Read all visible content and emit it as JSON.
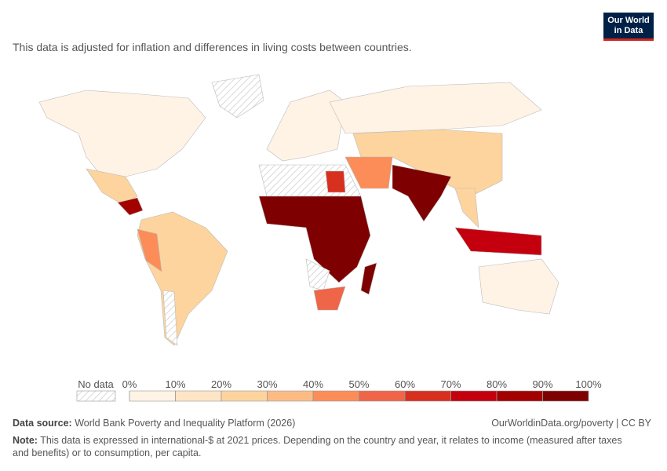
{
  "logo": {
    "line1": "Our World",
    "line2": "in Data"
  },
  "subtitle": "This data is adjusted for inflation and differences in living costs between countries.",
  "legend": {
    "no_data": "No data",
    "ticks": [
      {
        "value": 0,
        "label": "0%"
      },
      {
        "value": 10,
        "label": "10%"
      },
      {
        "value": 20,
        "label": "20%"
      },
      {
        "value": 30,
        "label": "30%"
      },
      {
        "value": 40,
        "label": "40%"
      },
      {
        "value": 50,
        "label": "50%"
      },
      {
        "value": 60,
        "label": "60%"
      },
      {
        "value": 70,
        "label": "70%"
      },
      {
        "value": 80,
        "label": "80%"
      },
      {
        "value": 90,
        "label": "90%"
      },
      {
        "value": 100,
        "label": "100%"
      }
    ],
    "colors": [
      "#fff3e6",
      "#fee5c5",
      "#fdd49e",
      "#fdbb84",
      "#fc8d59",
      "#ef6548",
      "#d7301f",
      "#c4000f",
      "#a30000",
      "#7f0000"
    ]
  },
  "footer": {
    "source_label": "Data source:",
    "source": "World Bank Poverty and Inequality Platform (2026)",
    "link": "OurWorldinData.org/poverty | CC BY",
    "note_label": "Note:",
    "note": "This data is expressed in international-$ at 2021 prices. Depending on the country and year, it relates to income (measured after taxes and benefits) or to consumption, per capita."
  }
}
